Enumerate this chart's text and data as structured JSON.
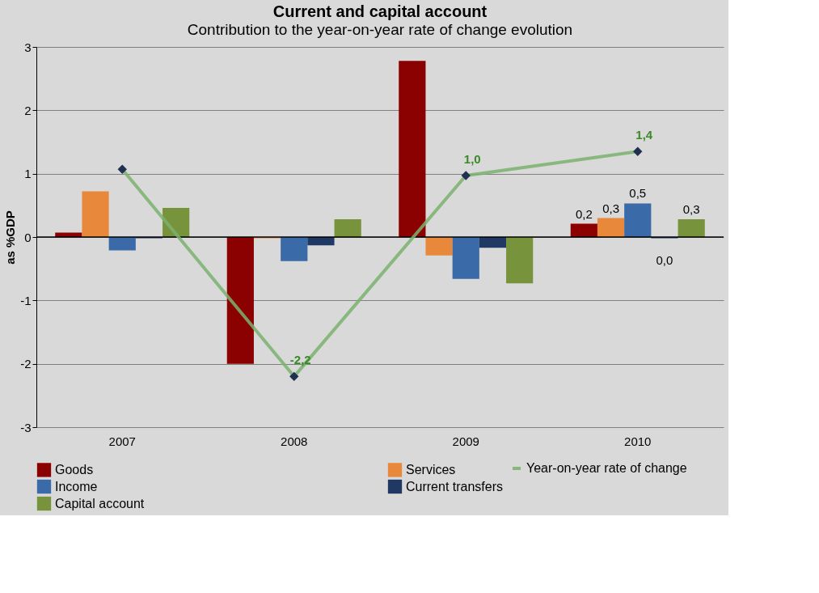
{
  "chart_data": {
    "type": "bar",
    "title": "Current and capital account",
    "subtitle": "Contribution to the year-on-year rate of change evolution",
    "ylabel": "as %GDP",
    "categories": [
      "2007",
      "2008",
      "2009",
      "2010"
    ],
    "series": [
      {
        "name": "Goods",
        "color": "#8b0000",
        "values": [
          0.07,
          -2.0,
          2.78,
          0.21
        ],
        "value_labels": [
          null,
          null,
          null,
          "0,2"
        ]
      },
      {
        "name": "Services",
        "color": "#e8883a",
        "values": [
          0.72,
          -0.02,
          -0.29,
          0.3
        ],
        "value_labels": [
          null,
          null,
          null,
          "0,3"
        ]
      },
      {
        "name": "Income",
        "color": "#3a6aa8",
        "values": [
          -0.21,
          -0.38,
          -0.66,
          0.53
        ],
        "value_labels": [
          null,
          null,
          null,
          "0,5"
        ]
      },
      {
        "name": "Current transfers",
        "color": "#1f3864",
        "values": [
          -0.02,
          -0.13,
          -0.17,
          -0.02
        ],
        "value_labels": [
          null,
          null,
          null,
          "0,0"
        ]
      },
      {
        "name": "Capital account",
        "color": "#77933c",
        "values": [
          0.46,
          0.28,
          -0.73,
          0.28
        ],
        "value_labels": [
          null,
          null,
          null,
          "0,3"
        ]
      },
      {
        "name": "Year-on-year rate of change",
        "type": "line",
        "color": "#7ab26f",
        "marker": "diamond",
        "values": [
          1.07,
          -2.2,
          0.97,
          1.35
        ],
        "value_labels": [
          null,
          "-2,2",
          "1,0",
          "1,4"
        ]
      }
    ],
    "ylim": [
      -3,
      3
    ],
    "yticks": [
      -3,
      -2,
      -1,
      0,
      1,
      2,
      3
    ],
    "grid": "y",
    "legend": "bottom"
  }
}
